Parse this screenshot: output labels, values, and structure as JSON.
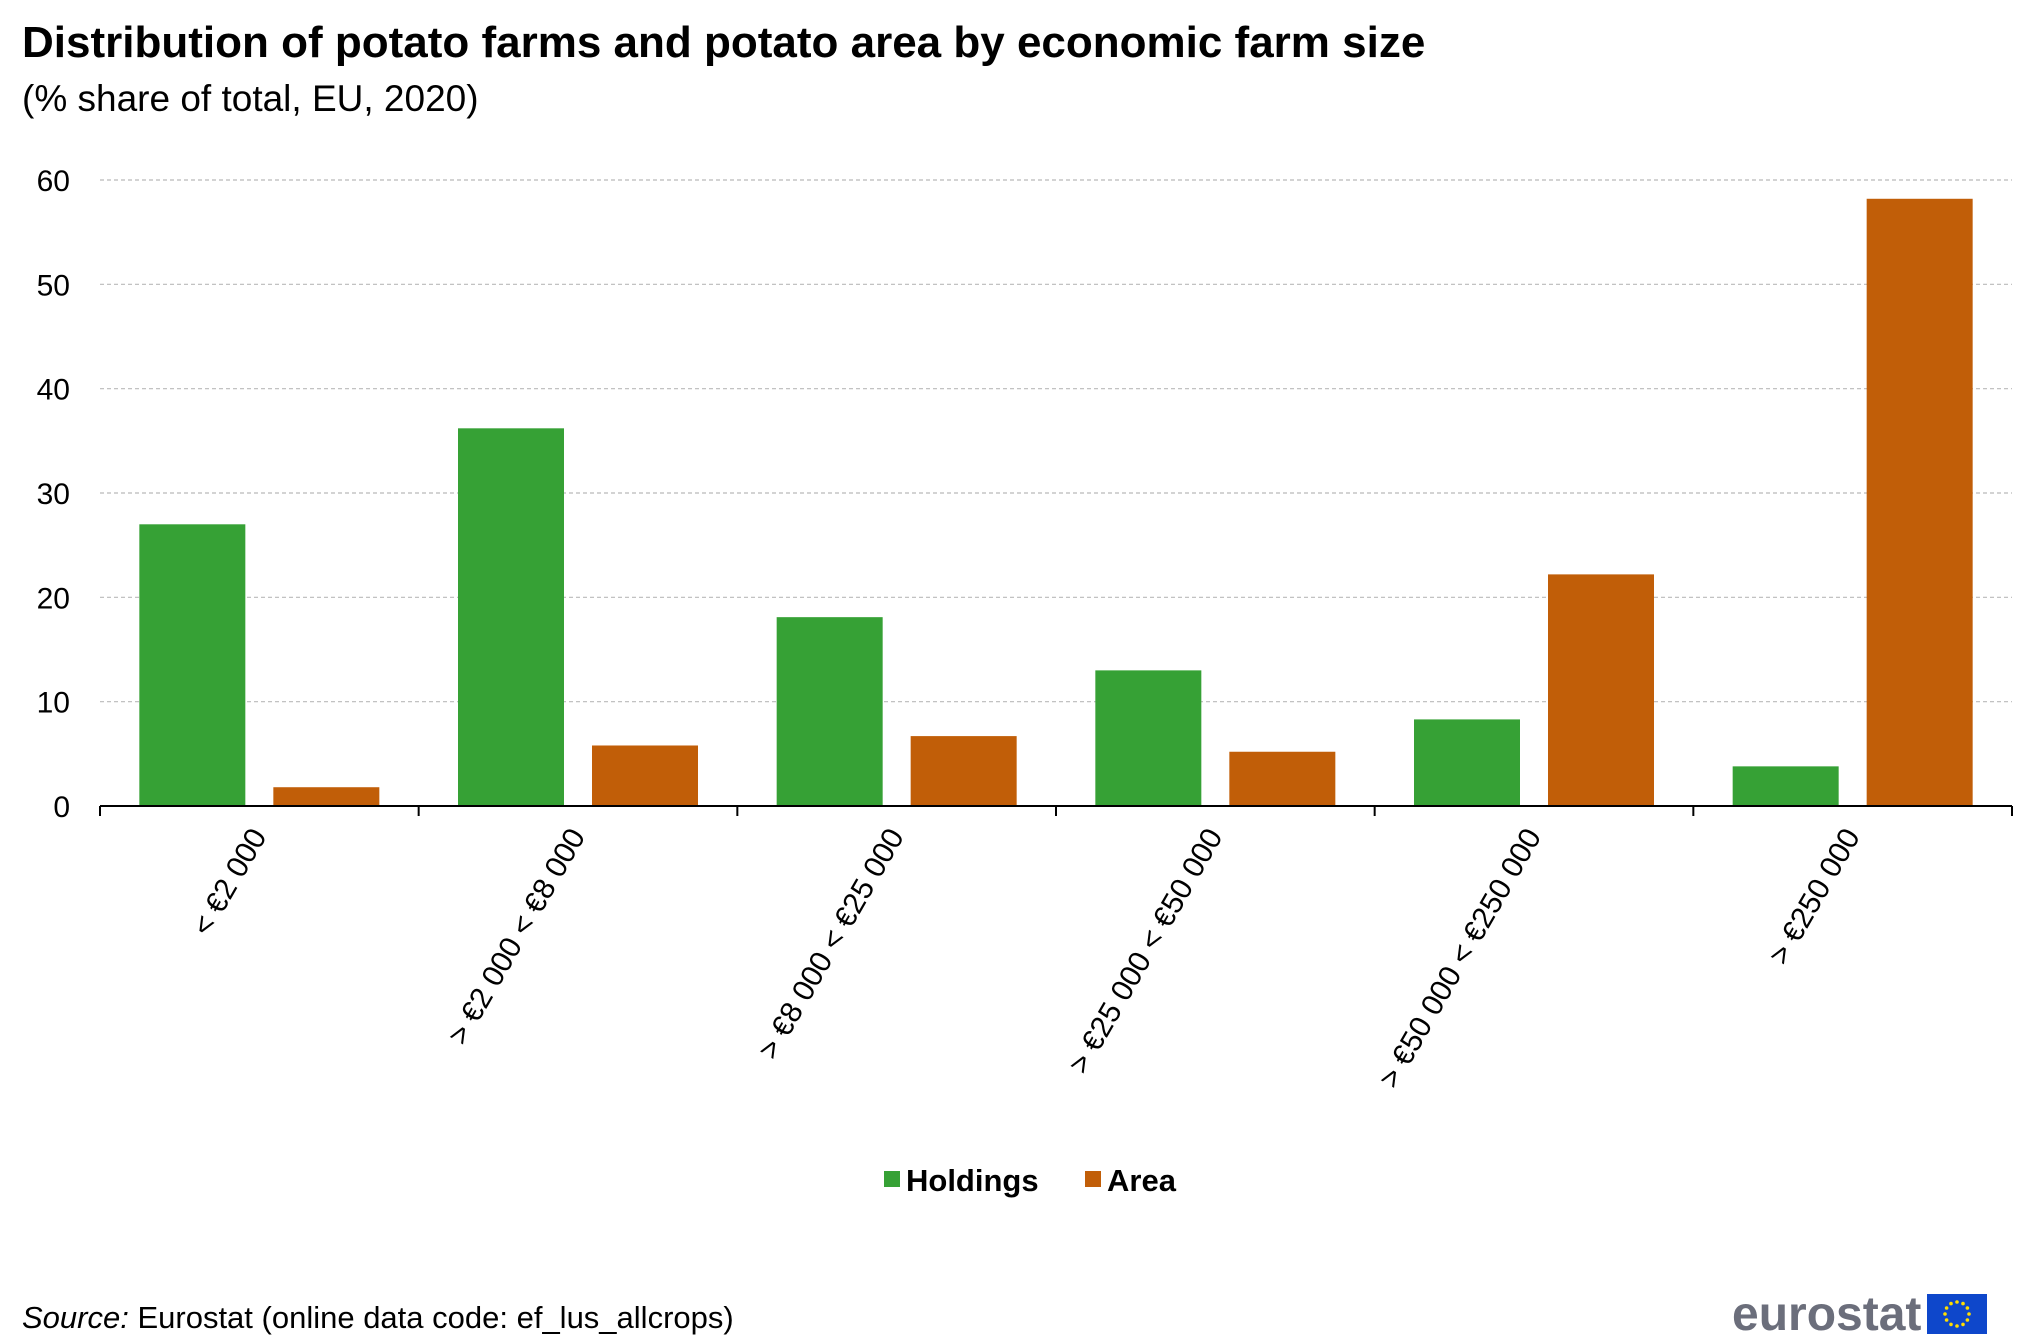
{
  "header": {
    "title": "Distribution of potato farms and potato area by economic farm size",
    "subtitle": "(% share of total, EU, 2020)"
  },
  "footer": {
    "source_label": "Source:",
    "source_text": " Eurostat (online data code: ef_lus_allcrops)",
    "logo_text": "eurostat"
  },
  "colors": {
    "holdings": "#36a135",
    "area": "#c15e08",
    "grid": "#b9b9b9",
    "axis": "#000000",
    "logo_flag": "#0e47cb",
    "logo_stars": "#ffde00"
  },
  "chart_data": {
    "type": "bar",
    "categories": [
      "< €2 000",
      "> €2 000 < €8 000",
      "> €8 000 < €25 000",
      "> €25 000 < €50 000",
      "> €50 000 < €250 000",
      "> €250 000"
    ],
    "series": [
      {
        "name": "Holdings",
        "values": [
          27.0,
          36.2,
          18.1,
          13.0,
          8.3,
          3.8
        ]
      },
      {
        "name": "Area",
        "values": [
          1.8,
          5.8,
          6.7,
          5.2,
          22.2,
          58.2
        ]
      }
    ],
    "ylim": [
      0,
      60
    ],
    "yticks": [
      0,
      10,
      20,
      30,
      40,
      50,
      60
    ],
    "grid": true,
    "legend_position": "bottom-center"
  }
}
